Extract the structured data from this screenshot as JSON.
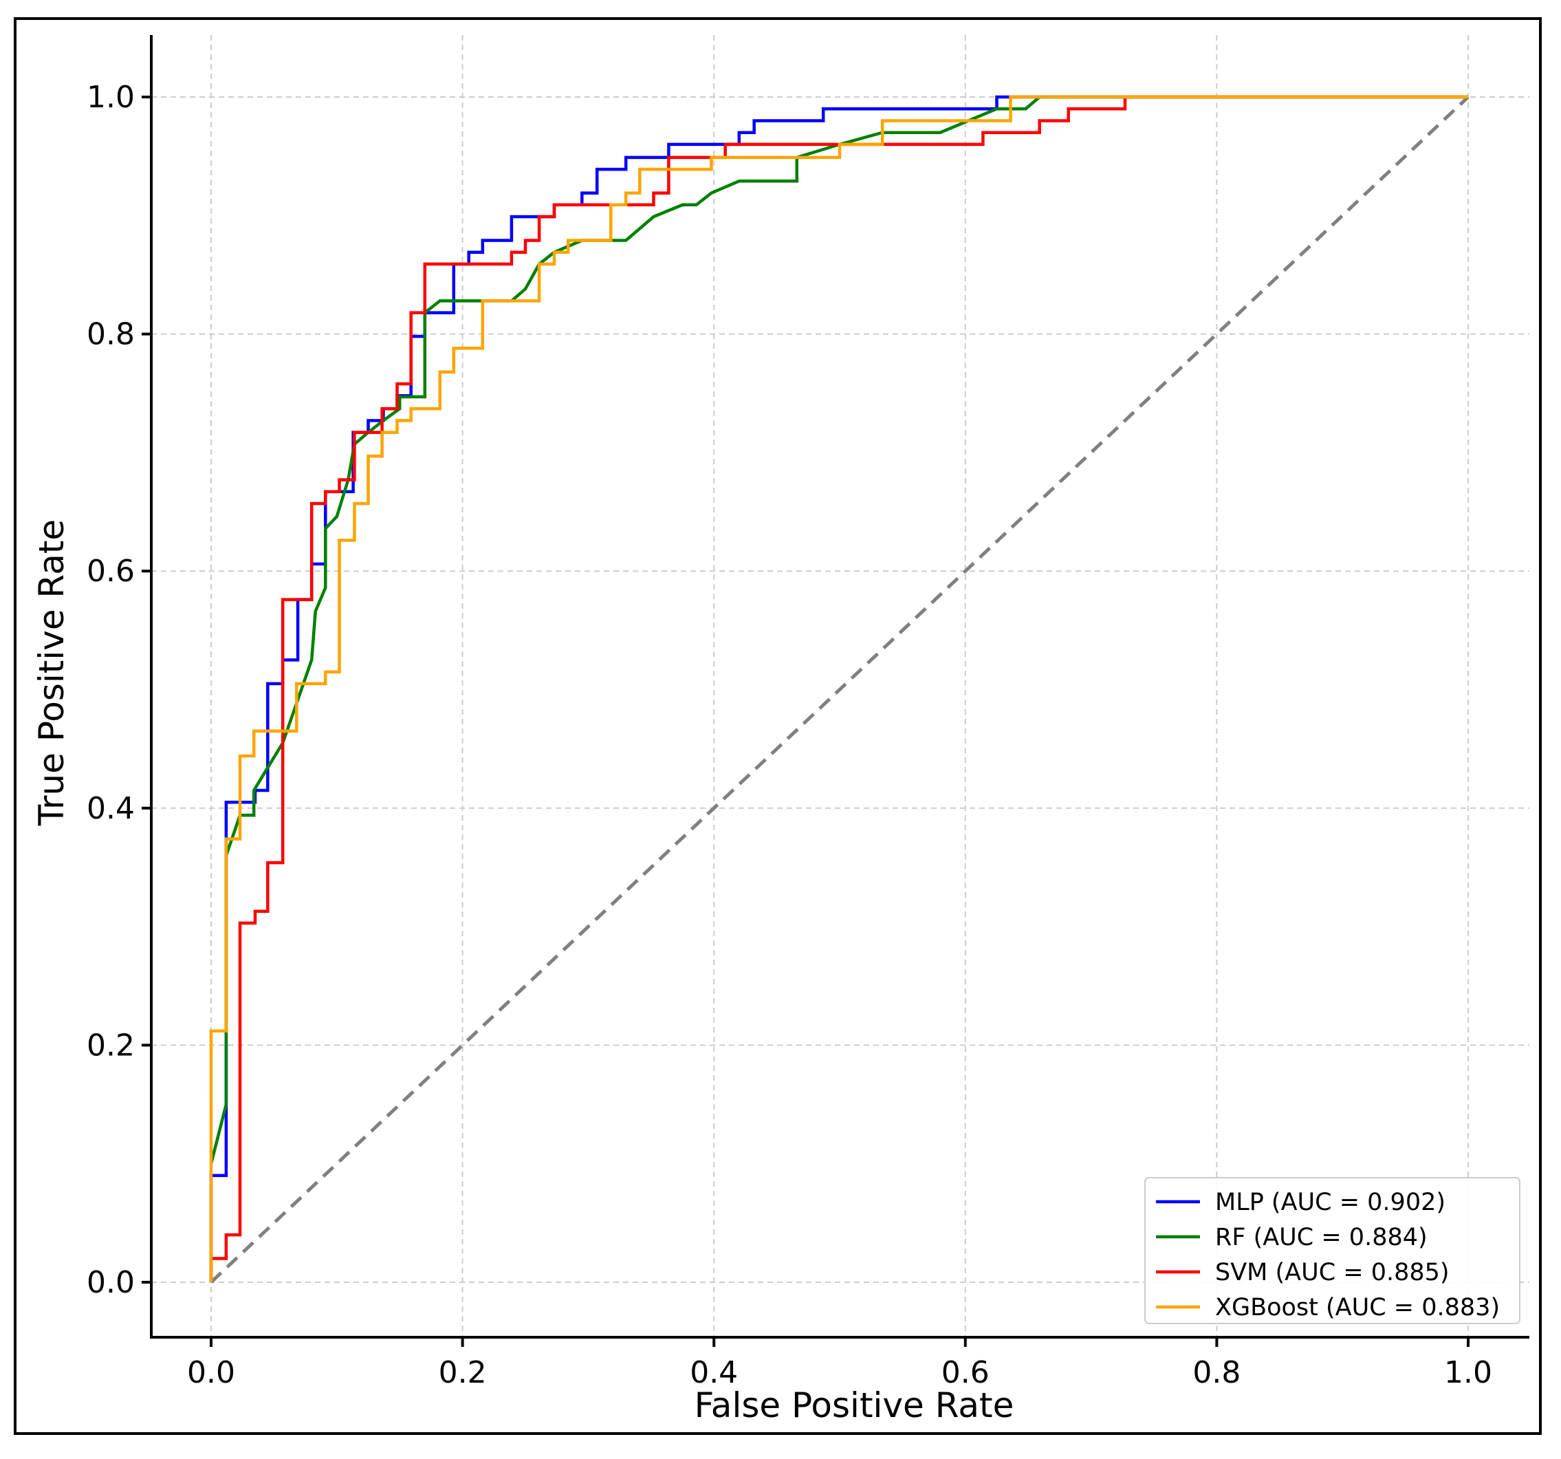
{
  "chart_data": {
    "type": "line",
    "title": "",
    "xlabel": "False Positive Rate",
    "ylabel": "True Positive Rate",
    "xlim": [
      -0.05,
      1.05
    ],
    "ylim": [
      -0.05,
      1.05
    ],
    "xticks": [
      0.0,
      0.2,
      0.4,
      0.6,
      0.8,
      1.0
    ],
    "yticks": [
      0.0,
      0.2,
      0.4,
      0.6,
      0.8,
      1.0
    ],
    "xtick_labels": [
      "0.0",
      "0.2",
      "0.4",
      "0.6",
      "0.8",
      "1.0"
    ],
    "ytick_labels": [
      "0.0",
      "0.2",
      "0.4",
      "0.6",
      "0.8",
      "1.0"
    ],
    "grid": true,
    "legend_position": "bottom-right",
    "diagonal": {
      "x": [
        0,
        1
      ],
      "y": [
        0,
        1
      ],
      "color": "#808080",
      "style": "dashed"
    },
    "series": [
      {
        "name": "MLP (AUC = 0.902)",
        "color": "#0000ff",
        "x": [
          0,
          0,
          0.012,
          0.012,
          0.035,
          0.035,
          0.045,
          0.045,
          0.057,
          0.057,
          0.069,
          0.069,
          0.08,
          0.08,
          0.091,
          0.091,
          0.113,
          0.113,
          0.125,
          0.125,
          0.137,
          0.137,
          0.148,
          0.148,
          0.159,
          0.159,
          0.17,
          0.17,
          0.193,
          0.193,
          0.205,
          0.205,
          0.216,
          0.216,
          0.239,
          0.239,
          0.273,
          0.273,
          0.295,
          0.295,
          0.307,
          0.307,
          0.33,
          0.33,
          0.364,
          0.364,
          0.42,
          0.42,
          0.432,
          0.432,
          0.487,
          0.487,
          0.625,
          0.625,
          1.0
        ],
        "y": [
          0,
          0.09,
          0.09,
          0.405,
          0.405,
          0.415,
          0.415,
          0.505,
          0.505,
          0.525,
          0.525,
          0.576,
          0.576,
          0.606,
          0.606,
          0.667,
          0.667,
          0.717,
          0.717,
          0.727,
          0.727,
          0.737,
          0.737,
          0.748,
          0.748,
          0.798,
          0.798,
          0.818,
          0.818,
          0.859,
          0.859,
          0.869,
          0.869,
          0.879,
          0.879,
          0.899,
          0.899,
          0.909,
          0.909,
          0.919,
          0.919,
          0.939,
          0.939,
          0.949,
          0.949,
          0.96,
          0.96,
          0.97,
          0.97,
          0.98,
          0.98,
          0.99,
          0.99,
          1.0,
          1.0
        ]
      },
      {
        "name": "RF (AUC = 0.884)",
        "color": "#008000",
        "x": [
          0,
          0.012,
          0.012,
          0.023,
          0.034,
          0.034,
          0.057,
          0.08,
          0.083,
          0.091,
          0.091,
          0.1,
          0.109,
          0.114,
          0.125,
          0.137,
          0.15,
          0.15,
          0.17,
          0.17,
          0.182,
          0.2,
          0.216,
          0.239,
          0.25,
          0.261,
          0.273,
          0.295,
          0.33,
          0.352,
          0.375,
          0.386,
          0.398,
          0.398,
          0.42,
          0.466,
          0.466,
          0.5,
          0.534,
          0.58,
          0.625,
          0.648,
          0.659,
          1.0
        ],
        "y": [
          0.1,
          0.15,
          0.36,
          0.394,
          0.394,
          0.415,
          0.455,
          0.525,
          0.566,
          0.586,
          0.636,
          0.646,
          0.677,
          0.707,
          0.717,
          0.727,
          0.737,
          0.747,
          0.747,
          0.818,
          0.828,
          0.828,
          0.828,
          0.828,
          0.838,
          0.859,
          0.869,
          0.879,
          0.879,
          0.899,
          0.909,
          0.909,
          0.919,
          0.919,
          0.929,
          0.929,
          0.949,
          0.96,
          0.97,
          0.97,
          0.99,
          0.99,
          1.0,
          1.0
        ]
      },
      {
        "name": "SVM (AUC = 0.885)",
        "color": "#ff0000",
        "x": [
          0,
          0,
          0.012,
          0.012,
          0.023,
          0.023,
          0.035,
          0.035,
          0.045,
          0.045,
          0.057,
          0.057,
          0.08,
          0.08,
          0.091,
          0.091,
          0.102,
          0.102,
          0.114,
          0.114,
          0.136,
          0.136,
          0.148,
          0.148,
          0.159,
          0.159,
          0.17,
          0.17,
          0.239,
          0.239,
          0.25,
          0.25,
          0.261,
          0.261,
          0.273,
          0.273,
          0.352,
          0.352,
          0.364,
          0.364,
          0.409,
          0.409,
          0.614,
          0.614,
          0.659,
          0.659,
          0.682,
          0.682,
          0.727,
          0.727,
          1.0
        ],
        "y": [
          0,
          0.02,
          0.02,
          0.04,
          0.04,
          0.303,
          0.303,
          0.313,
          0.313,
          0.354,
          0.354,
          0.576,
          0.576,
          0.657,
          0.657,
          0.667,
          0.667,
          0.677,
          0.677,
          0.717,
          0.717,
          0.737,
          0.737,
          0.758,
          0.758,
          0.818,
          0.818,
          0.859,
          0.859,
          0.869,
          0.869,
          0.879,
          0.879,
          0.899,
          0.899,
          0.909,
          0.909,
          0.919,
          0.919,
          0.949,
          0.949,
          0.96,
          0.96,
          0.97,
          0.97,
          0.98,
          0.98,
          0.99,
          0.99,
          1.0,
          1.0
        ]
      },
      {
        "name": "XGBoost (AUC = 0.883)",
        "color": "#ffa500",
        "x": [
          0,
          0,
          0.012,
          0.012,
          0.023,
          0.023,
          0.034,
          0.034,
          0.068,
          0.068,
          0.091,
          0.091,
          0.102,
          0.102,
          0.114,
          0.114,
          0.125,
          0.125,
          0.136,
          0.136,
          0.148,
          0.148,
          0.159,
          0.159,
          0.182,
          0.182,
          0.193,
          0.193,
          0.216,
          0.216,
          0.261,
          0.261,
          0.273,
          0.273,
          0.284,
          0.284,
          0.318,
          0.318,
          0.33,
          0.33,
          0.341,
          0.341,
          0.398,
          0.398,
          0.5,
          0.5,
          0.534,
          0.534,
          0.636,
          0.636,
          1.0
        ],
        "y": [
          0,
          0.212,
          0.212,
          0.374,
          0.374,
          0.444,
          0.444,
          0.465,
          0.465,
          0.505,
          0.505,
          0.515,
          0.515,
          0.626,
          0.626,
          0.657,
          0.657,
          0.697,
          0.697,
          0.717,
          0.717,
          0.727,
          0.727,
          0.737,
          0.737,
          0.768,
          0.768,
          0.788,
          0.788,
          0.828,
          0.828,
          0.859,
          0.859,
          0.869,
          0.869,
          0.879,
          0.879,
          0.909,
          0.909,
          0.919,
          0.919,
          0.939,
          0.939,
          0.949,
          0.949,
          0.96,
          0.96,
          0.98,
          0.98,
          1.0,
          1.0
        ]
      }
    ]
  }
}
